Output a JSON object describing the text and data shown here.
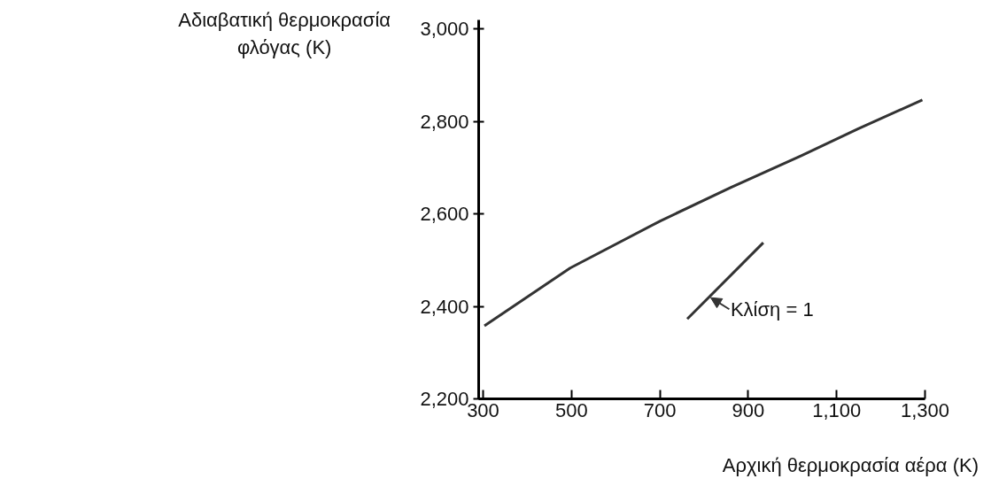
{
  "chart_data": {
    "type": "line",
    "xlabel": "Αρχική θερμοκρασία αέρα (K)",
    "ylabel": "Αδιαβατική θερμοκρασία\nφλόγας (K)",
    "series": [
      {
        "color": "#333333",
        "x": [
          303,
          497,
          701,
          860,
          1020,
          1148,
          1294
        ],
        "values": [
          2358,
          2483,
          2585,
          2657,
          2726,
          2784,
          2847
        ]
      },
      {
        "color": "#333333",
        "x": [
          762,
          934
        ],
        "values": [
          2373,
          2538
        ]
      }
    ],
    "annotations": [
      {
        "text": "Κλίση = 1",
        "x": 815,
        "y": 2419
      }
    ],
    "xlim": [
      290,
      1300
    ],
    "ylim": [
      2200,
      3020
    ],
    "xticks": [
      300,
      500,
      700,
      {
        "value": 900,
        "label": "900"
      },
      {
        "value": 1100,
        "label": "1,100"
      },
      {
        "value": 1300,
        "label": "1,300"
      }
    ],
    "yticks": [
      {
        "value": 2200,
        "label": "2,200"
      },
      {
        "value": 2400,
        "label": "2,400"
      },
      {
        "value": 2600,
        "label": "2,600"
      },
      {
        "value": 2800,
        "label": "2,800"
      },
      {
        "value": 3000,
        "label": "3,000"
      }
    ],
    "grid": false,
    "marker": "none",
    "line_style": "solid"
  }
}
